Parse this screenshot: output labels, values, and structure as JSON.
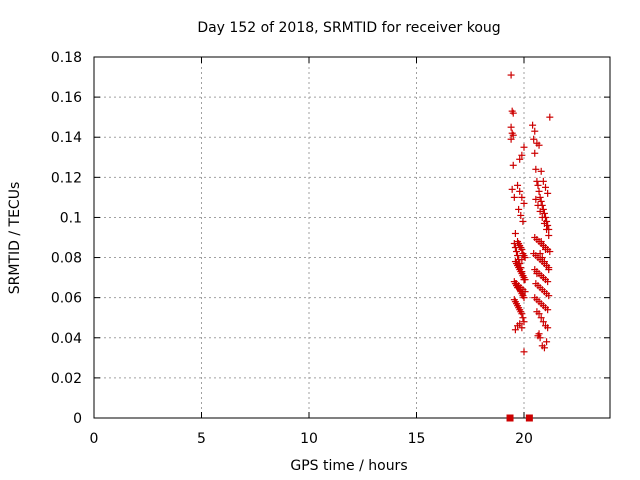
{
  "chart_data": {
    "type": "scatter",
    "title": "Day 152 of 2018, SRMTID for receiver koug",
    "xlabel": "GPS time / hours",
    "ylabel": "SRMTID / TECUs",
    "xlim": [
      0,
      24
    ],
    "ylim": [
      0,
      0.18
    ],
    "xticks": [
      0,
      5,
      10,
      15,
      20
    ],
    "yticks": [
      0,
      0.02,
      0.04,
      0.06,
      0.08,
      0.1,
      0.12,
      0.14,
      0.16,
      0.18
    ],
    "ytick_labels": [
      "0",
      "0.02",
      "0.04",
      "0.06",
      "0.08",
      "0.1",
      "0.12",
      "0.14",
      "0.16",
      "0.18"
    ],
    "grid": true,
    "colors": {
      "series": "#cc0000",
      "grid": "#a0a0a0",
      "axis": "#000000"
    },
    "series": [
      {
        "name": "SRMTID",
        "marker": "plus",
        "x": [
          19.4,
          19.45,
          19.5,
          19.4,
          19.45,
          19.5,
          19.4,
          19.5,
          19.45,
          19.55,
          19.6,
          19.7,
          19.75,
          19.8,
          19.85,
          19.9,
          19.95,
          20.0,
          20.05,
          19.9,
          19.6,
          19.65,
          19.7,
          19.75,
          19.8,
          19.85,
          19.9,
          19.95,
          20.0,
          20.05,
          19.55,
          19.6,
          19.65,
          19.7,
          19.75,
          19.8,
          19.85,
          19.9,
          19.95,
          20.0,
          19.55,
          19.6,
          19.65,
          19.7,
          19.75,
          19.8,
          19.85,
          19.9,
          19.95,
          20.0,
          19.55,
          19.6,
          19.65,
          19.7,
          19.75,
          19.8,
          19.85,
          19.9,
          19.95,
          20.0,
          19.6,
          19.7,
          19.8,
          19.9,
          20.0,
          19.65,
          19.75,
          19.85,
          19.95,
          20.05,
          19.7,
          19.8,
          19.9,
          20.0,
          19.75,
          19.85,
          19.95,
          19.8,
          19.9,
          20.0,
          20.4,
          20.45,
          20.5,
          20.55,
          20.6,
          20.65,
          20.7,
          20.75,
          20.8,
          20.85,
          20.9,
          20.95,
          21.0,
          21.05,
          21.1,
          21.15,
          21.2,
          20.5,
          20.6,
          20.7,
          20.8,
          20.9,
          21.0,
          21.1,
          20.55,
          20.65,
          20.75,
          20.85,
          20.95,
          21.05,
          21.15,
          20.5,
          20.6,
          20.7,
          20.8,
          20.9,
          21.0,
          21.1,
          21.2,
          20.45,
          20.55,
          20.65,
          20.75,
          20.85,
          20.95,
          21.05,
          21.15,
          20.5,
          20.6,
          20.7,
          20.8,
          20.9,
          21.0,
          21.1,
          20.55,
          20.65,
          20.75,
          20.85,
          20.95,
          21.05,
          21.15,
          20.5,
          20.6,
          20.7,
          20.8,
          20.9,
          21.0,
          21.1,
          20.6,
          20.7,
          20.8,
          20.9,
          21.0,
          21.1,
          20.65,
          20.75,
          20.85,
          20.95,
          21.05,
          20.7,
          20.8,
          20.9,
          21.0,
          20.75,
          20.85,
          20.95,
          21.05,
          21.15,
          20.6,
          20.9
        ],
        "y": [
          0.171,
          0.153,
          0.152,
          0.145,
          0.142,
          0.141,
          0.139,
          0.126,
          0.114,
          0.11,
          0.092,
          0.088,
          0.087,
          0.086,
          0.085,
          0.084,
          0.082,
          0.081,
          0.08,
          0.079,
          0.078,
          0.077,
          0.076,
          0.075,
          0.074,
          0.073,
          0.072,
          0.071,
          0.07,
          0.069,
          0.068,
          0.067,
          0.066,
          0.065,
          0.065,
          0.064,
          0.063,
          0.062,
          0.061,
          0.06,
          0.059,
          0.058,
          0.057,
          0.056,
          0.055,
          0.054,
          0.053,
          0.052,
          0.05,
          0.048,
          0.087,
          0.085,
          0.083,
          0.081,
          0.079,
          0.077,
          0.075,
          0.073,
          0.071,
          0.069,
          0.044,
          0.046,
          0.047,
          0.045,
          0.033,
          0.067,
          0.066,
          0.065,
          0.064,
          0.063,
          0.116,
          0.113,
          0.11,
          0.107,
          0.104,
          0.101,
          0.098,
          0.129,
          0.131,
          0.135,
          0.146,
          0.139,
          0.132,
          0.124,
          0.118,
          0.116,
          0.113,
          0.11,
          0.108,
          0.106,
          0.104,
          0.102,
          0.1,
          0.098,
          0.096,
          0.094,
          0.15,
          0.143,
          0.137,
          0.136,
          0.123,
          0.118,
          0.115,
          0.112,
          0.109,
          0.106,
          0.103,
          0.1,
          0.097,
          0.094,
          0.091,
          0.09,
          0.089,
          0.088,
          0.087,
          0.086,
          0.085,
          0.084,
          0.083,
          0.082,
          0.081,
          0.08,
          0.079,
          0.078,
          0.077,
          0.076,
          0.075,
          0.074,
          0.073,
          0.072,
          0.071,
          0.07,
          0.069,
          0.068,
          0.067,
          0.066,
          0.065,
          0.064,
          0.063,
          0.062,
          0.061,
          0.06,
          0.059,
          0.058,
          0.057,
          0.056,
          0.055,
          0.054,
          0.053,
          0.052,
          0.05,
          0.048,
          0.046,
          0.045,
          0.041,
          0.04,
          0.036,
          0.035,
          0.038,
          0.042,
          0.088,
          0.086,
          0.084,
          0.082,
          0.08,
          0.078,
          0.076,
          0.074,
          0.072,
          0.07
        ],
        "zero_markers_x": [
          19.35,
          20.25
        ]
      }
    ]
  }
}
